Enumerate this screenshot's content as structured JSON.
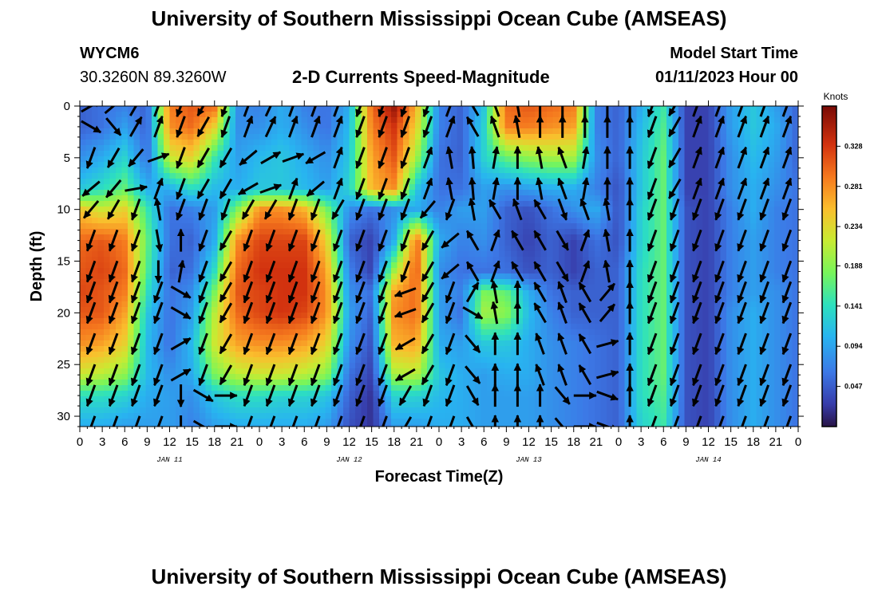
{
  "header": {
    "title": "University of Southern Mississippi Ocean Cube (AMSEAS)",
    "station_id": "WYCM6",
    "station_coords": "30.3260N  89.3260W",
    "plot_title": "2-D Currents Speed-Magnitude",
    "start_label": "Model Start Time",
    "start_value": "01/11/2023 Hour 00"
  },
  "footer": {
    "title": "University of Southern Mississippi Ocean Cube (AMSEAS)"
  },
  "chart_data": {
    "type": "heatmap",
    "title": "2-D Currents Speed-Magnitude",
    "xlabel": "Forecast Time(Z)",
    "ylabel": "Depth (ft)",
    "x_unit": "hours since 01/11/2023 00Z",
    "xlim": [
      0,
      96
    ],
    "ylim": [
      0,
      31
    ],
    "y_inverted": true,
    "x_tick_labels": [
      "0",
      "3",
      "6",
      "9",
      "12",
      "15",
      "18",
      "21",
      "0",
      "3",
      "6",
      "9",
      "12",
      "15",
      "18",
      "21",
      "0",
      "3",
      "6",
      "9",
      "12",
      "15",
      "18",
      "21",
      "0",
      "3",
      "6",
      "9",
      "12",
      "15",
      "18",
      "21",
      "0"
    ],
    "y_ticks": [
      0,
      5,
      10,
      15,
      20,
      25,
      30
    ],
    "day_labels": [
      {
        "x": 12,
        "label": "JAN 11"
      },
      {
        "x": 36,
        "label": "JAN 12"
      },
      {
        "x": 60,
        "label": "JAN 13"
      },
      {
        "x": 84,
        "label": "JAN 14"
      }
    ],
    "colorbar": {
      "title": "Knots",
      "ticks": [
        0.047,
        0.094,
        0.141,
        0.188,
        0.234,
        0.281,
        0.328
      ],
      "min": 0.0,
      "max": 0.375
    },
    "time_hours": [
      0,
      3,
      6,
      9,
      12,
      15,
      18,
      21,
      24,
      27,
      30,
      33,
      36,
      39,
      42,
      45,
      48,
      51,
      54,
      57,
      60,
      63,
      66,
      69,
      72,
      75,
      78,
      81,
      84,
      87,
      90,
      93,
      96
    ],
    "depth_ft": [
      0,
      2,
      5,
      8,
      10,
      13,
      16,
      18,
      20,
      23,
      26,
      28,
      31
    ],
    "speed_knots": [
      [
        0.05,
        0.06,
        0.07,
        0.05,
        0.29,
        0.31,
        0.3,
        0.08,
        0.07,
        0.1,
        0.07,
        0.06,
        0.1,
        0.3,
        0.36,
        0.26,
        0.07,
        0.05,
        0.12,
        0.3,
        0.31,
        0.3,
        0.29,
        0.07,
        0.05,
        0.1,
        0.15,
        0.03,
        0.03,
        0.09,
        0.12,
        0.09,
        0.05
      ],
      [
        0.05,
        0.06,
        0.09,
        0.05,
        0.28,
        0.3,
        0.24,
        0.08,
        0.08,
        0.1,
        0.08,
        0.06,
        0.11,
        0.29,
        0.33,
        0.24,
        0.07,
        0.05,
        0.13,
        0.29,
        0.29,
        0.28,
        0.27,
        0.07,
        0.05,
        0.11,
        0.16,
        0.03,
        0.03,
        0.09,
        0.12,
        0.1,
        0.05
      ],
      [
        0.08,
        0.1,
        0.13,
        0.06,
        0.22,
        0.24,
        0.15,
        0.09,
        0.11,
        0.12,
        0.1,
        0.08,
        0.12,
        0.27,
        0.31,
        0.2,
        0.06,
        0.05,
        0.13,
        0.17,
        0.19,
        0.2,
        0.2,
        0.08,
        0.05,
        0.12,
        0.17,
        0.03,
        0.03,
        0.08,
        0.11,
        0.09,
        0.05
      ],
      [
        0.12,
        0.14,
        0.17,
        0.1,
        0.1,
        0.14,
        0.11,
        0.1,
        0.12,
        0.12,
        0.11,
        0.09,
        0.13,
        0.26,
        0.28,
        0.12,
        0.06,
        0.06,
        0.09,
        0.08,
        0.09,
        0.1,
        0.1,
        0.07,
        0.04,
        0.12,
        0.17,
        0.03,
        0.03,
        0.08,
        0.1,
        0.08,
        0.06
      ],
      [
        0.25,
        0.22,
        0.24,
        0.15,
        0.06,
        0.07,
        0.09,
        0.18,
        0.28,
        0.28,
        0.26,
        0.18,
        0.08,
        0.06,
        0.08,
        0.1,
        0.07,
        0.09,
        0.09,
        0.05,
        0.04,
        0.06,
        0.08,
        0.1,
        0.04,
        0.13,
        0.17,
        0.04,
        0.03,
        0.07,
        0.1,
        0.07,
        0.06
      ],
      [
        0.3,
        0.31,
        0.29,
        0.17,
        0.06,
        0.05,
        0.1,
        0.28,
        0.32,
        0.32,
        0.32,
        0.24,
        0.05,
        0.03,
        0.1,
        0.3,
        0.1,
        0.07,
        0.08,
        0.05,
        0.03,
        0.05,
        0.03,
        0.06,
        0.04,
        0.13,
        0.17,
        0.04,
        0.03,
        0.07,
        0.09,
        0.07,
        0.06
      ],
      [
        0.31,
        0.32,
        0.3,
        0.16,
        0.05,
        0.06,
        0.14,
        0.3,
        0.33,
        0.33,
        0.33,
        0.27,
        0.07,
        0.03,
        0.2,
        0.31,
        0.08,
        0.06,
        0.06,
        0.06,
        0.04,
        0.05,
        0.03,
        0.05,
        0.05,
        0.14,
        0.17,
        0.04,
        0.03,
        0.07,
        0.09,
        0.07,
        0.06
      ],
      [
        0.32,
        0.31,
        0.29,
        0.14,
        0.06,
        0.08,
        0.18,
        0.31,
        0.32,
        0.33,
        0.33,
        0.28,
        0.08,
        0.06,
        0.27,
        0.3,
        0.09,
        0.07,
        0.18,
        0.17,
        0.1,
        0.06,
        0.05,
        0.05,
        0.05,
        0.14,
        0.17,
        0.04,
        0.03,
        0.07,
        0.09,
        0.08,
        0.06
      ],
      [
        0.31,
        0.31,
        0.27,
        0.12,
        0.06,
        0.09,
        0.21,
        0.3,
        0.32,
        0.33,
        0.32,
        0.28,
        0.09,
        0.05,
        0.28,
        0.3,
        0.09,
        0.06,
        0.2,
        0.19,
        0.11,
        0.07,
        0.05,
        0.05,
        0.05,
        0.14,
        0.17,
        0.04,
        0.03,
        0.08,
        0.1,
        0.08,
        0.06
      ],
      [
        0.28,
        0.27,
        0.24,
        0.11,
        0.06,
        0.11,
        0.22,
        0.27,
        0.28,
        0.28,
        0.27,
        0.24,
        0.08,
        0.04,
        0.26,
        0.27,
        0.1,
        0.09,
        0.12,
        0.12,
        0.1,
        0.08,
        0.07,
        0.06,
        0.05,
        0.14,
        0.17,
        0.04,
        0.03,
        0.08,
        0.1,
        0.08,
        0.06
      ],
      [
        0.22,
        0.21,
        0.19,
        0.11,
        0.08,
        0.1,
        0.18,
        0.21,
        0.22,
        0.22,
        0.21,
        0.19,
        0.06,
        0.03,
        0.2,
        0.21,
        0.12,
        0.1,
        0.09,
        0.1,
        0.1,
        0.08,
        0.07,
        0.06,
        0.05,
        0.14,
        0.17,
        0.04,
        0.03,
        0.08,
        0.1,
        0.08,
        0.06
      ],
      [
        0.14,
        0.14,
        0.13,
        0.1,
        0.09,
        0.08,
        0.12,
        0.14,
        0.14,
        0.13,
        0.13,
        0.12,
        0.05,
        0.02,
        0.13,
        0.13,
        0.11,
        0.1,
        0.09,
        0.09,
        0.09,
        0.08,
        0.07,
        0.06,
        0.05,
        0.14,
        0.16,
        0.04,
        0.03,
        0.08,
        0.1,
        0.08,
        0.06
      ],
      [
        0.1,
        0.1,
        0.09,
        0.09,
        0.09,
        0.07,
        0.09,
        0.1,
        0.1,
        0.1,
        0.1,
        0.09,
        0.04,
        0.02,
        0.09,
        0.09,
        0.1,
        0.1,
        0.09,
        0.09,
        0.09,
        0.08,
        0.07,
        0.06,
        0.05,
        0.13,
        0.15,
        0.04,
        0.03,
        0.08,
        0.1,
        0.08,
        0.06
      ]
    ],
    "vector_times": [
      0,
      3,
      6,
      9,
      12,
      15,
      18,
      21,
      24,
      27,
      30,
      33,
      36,
      39,
      42,
      45,
      48,
      51,
      54,
      57,
      60,
      63,
      66,
      69,
      72,
      75,
      78,
      81,
      84,
      87,
      90,
      93
    ],
    "vector_depths": [
      0,
      2,
      5,
      8,
      10,
      13,
      16,
      18,
      20,
      23,
      26,
      28,
      31
    ],
    "vector_dirs_deg": [
      [
        60,
        50,
        30,
        20,
        200,
        210,
        200,
        20,
        25,
        20,
        20,
        20,
        200,
        200,
        200,
        200,
        20,
        330,
        340,
        350,
        0,
        0,
        0,
        0,
        0,
        200,
        210,
        20,
        20,
        20,
        20,
        20
      ],
      [
        120,
        140,
        30,
        20,
        200,
        210,
        200,
        20,
        25,
        20,
        20,
        20,
        200,
        200,
        200,
        200,
        20,
        330,
        340,
        350,
        0,
        0,
        0,
        0,
        0,
        200,
        210,
        20,
        20,
        20,
        20,
        20
      ],
      [
        200,
        210,
        220,
        70,
        200,
        210,
        210,
        230,
        60,
        70,
        240,
        20,
        200,
        200,
        200,
        20,
        350,
        355,
        10,
        0,
        350,
        340,
        10,
        0,
        0,
        200,
        210,
        20,
        20,
        20,
        20,
        20
      ],
      [
        230,
        220,
        80,
        20,
        200,
        210,
        210,
        240,
        70,
        20,
        230,
        20,
        200,
        200,
        200,
        20,
        350,
        355,
        10,
        0,
        350,
        340,
        10,
        0,
        0,
        200,
        210,
        20,
        20,
        20,
        20,
        20
      ],
      [
        220,
        210,
        200,
        350,
        200,
        200,
        200,
        210,
        210,
        200,
        200,
        210,
        200,
        200,
        200,
        220,
        200,
        350,
        330,
        340,
        330,
        160,
        340,
        350,
        0,
        200,
        200,
        200,
        200,
        200,
        200,
        200
      ],
      [
        200,
        200,
        200,
        170,
        0,
        200,
        210,
        200,
        200,
        200,
        200,
        200,
        200,
        200,
        200,
        210,
        230,
        330,
        20,
        330,
        330,
        150,
        20,
        350,
        0,
        200,
        200,
        200,
        200,
        200,
        200,
        200
      ],
      [
        200,
        200,
        200,
        180,
        10,
        200,
        210,
        200,
        200,
        200,
        200,
        200,
        200,
        200,
        200,
        210,
        230,
        330,
        20,
        330,
        330,
        150,
        20,
        350,
        0,
        200,
        200,
        200,
        200,
        200,
        200,
        200
      ],
      [
        200,
        200,
        200,
        200,
        120,
        200,
        210,
        200,
        200,
        200,
        200,
        200,
        200,
        200,
        250,
        210,
        200,
        30,
        350,
        0,
        330,
        340,
        330,
        40,
        0,
        200,
        200,
        200,
        200,
        200,
        200,
        200
      ],
      [
        200,
        200,
        200,
        200,
        120,
        200,
        210,
        200,
        200,
        200,
        200,
        200,
        200,
        200,
        250,
        210,
        200,
        120,
        350,
        0,
        330,
        340,
        330,
        40,
        0,
        200,
        200,
        200,
        200,
        200,
        200,
        200
      ],
      [
        200,
        200,
        200,
        200,
        60,
        200,
        210,
        200,
        200,
        200,
        200,
        200,
        200,
        200,
        240,
        210,
        200,
        140,
        0,
        0,
        340,
        340,
        330,
        75,
        0,
        200,
        200,
        200,
        200,
        200,
        200,
        200
      ],
      [
        200,
        200,
        200,
        200,
        60,
        200,
        210,
        200,
        200,
        200,
        200,
        200,
        200,
        200,
        240,
        210,
        200,
        140,
        0,
        0,
        340,
        340,
        330,
        75,
        0,
        200,
        200,
        200,
        200,
        200,
        200,
        200
      ],
      [
        200,
        200,
        200,
        200,
        180,
        120,
        90,
        200,
        200,
        200,
        200,
        200,
        200,
        200,
        210,
        200,
        200,
        150,
        0,
        0,
        0,
        140,
        90,
        110,
        0,
        200,
        200,
        200,
        200,
        200,
        200,
        200
      ],
      [
        200,
        200,
        200,
        200,
        180,
        120,
        90,
        200,
        200,
        200,
        200,
        200,
        200,
        200,
        210,
        200,
        200,
        150,
        0,
        0,
        0,
        140,
        90,
        110,
        0,
        200,
        200,
        200,
        200,
        200,
        200,
        200
      ]
    ]
  }
}
